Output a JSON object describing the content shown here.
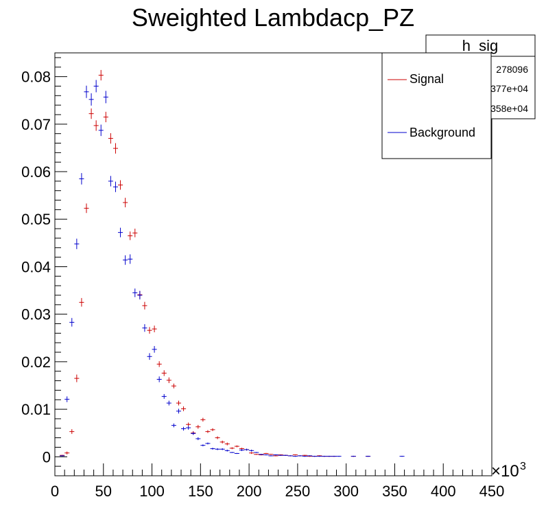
{
  "chart_data": {
    "type": "scatter",
    "title": "Sweighted Lambdacp_PZ",
    "xlabel": "",
    "ylabel": "",
    "x_multiplier_label": "×10",
    "x_multiplier_exp": "3",
    "xlim": [
      0,
      450
    ],
    "ylim": [
      -0.004,
      0.085
    ],
    "x_ticks": [
      0,
      50,
      100,
      150,
      200,
      250,
      300,
      350,
      400,
      450
    ],
    "y_ticks": [
      0,
      0.01,
      0.02,
      0.03,
      0.04,
      0.05,
      0.06,
      0.07,
      0.08
    ],
    "y_tick_labels": [
      "0",
      "0.01",
      "0.02",
      "0.03",
      "0.04",
      "0.05",
      "0.06",
      "0.07",
      "0.08"
    ],
    "x_bin_width": 5,
    "grid": false,
    "legend_position": "top-right",
    "stats_box": {
      "title": "h_sig",
      "lines": [
        "278096",
        "377e+04",
        "358e+04"
      ]
    },
    "series": [
      {
        "name": "Signal",
        "color": "#cc0000",
        "x": [
          7.5,
          12.5,
          17.5,
          22.5,
          27.5,
          32.5,
          37.5,
          42.5,
          47.5,
          52.5,
          57.5,
          62.5,
          67.5,
          72.5,
          77.5,
          82.5,
          87.5,
          92.5,
          97.5,
          102.5,
          107.5,
          112.5,
          117.5,
          122.5,
          127.5,
          132.5,
          137.5,
          142.5,
          147.5,
          152.5,
          157.5,
          162.5,
          167.5,
          172.5,
          177.5,
          182.5,
          187.5,
          192.5,
          197.5,
          202.5,
          207.5,
          212.5,
          217.5,
          222.5,
          227.5,
          232.5,
          237.5,
          242.5,
          247.5,
          252.5,
          257.5,
          262.5,
          267.5,
          272.5,
          277.5,
          282.5,
          287.5,
          307.5,
          322.5
        ],
        "y": [
          0.0003,
          0.0008,
          0.0053,
          0.0165,
          0.0325,
          0.0523,
          0.0722,
          0.0697,
          0.0803,
          0.0715,
          0.067,
          0.0649,
          0.0572,
          0.0535,
          0.0465,
          0.0471,
          0.0341,
          0.0318,
          0.0266,
          0.0269,
          0.0195,
          0.0176,
          0.0161,
          0.0149,
          0.0113,
          0.0101,
          0.0068,
          0.005,
          0.0063,
          0.0078,
          0.0053,
          0.0057,
          0.004,
          0.0031,
          0.0027,
          0.0018,
          0.0022,
          0.0017,
          0.0015,
          0.0008,
          0.0005,
          0.0004,
          0.0007,
          0.0005,
          0.0002,
          0.0004,
          0.0003,
          0.0002,
          0.0004,
          0.0002,
          0.0003,
          0.0001,
          0.0001,
          0.0002,
          0.0001,
          0.0001,
          0.0001,
          0.0001,
          0.0001
        ],
        "y_err": [
          0.0001,
          0.0003,
          0.0005,
          0.0008,
          0.0009,
          0.001,
          0.0011,
          0.0011,
          0.0011,
          0.0011,
          0.0011,
          0.0011,
          0.001,
          0.001,
          0.0009,
          0.0009,
          0.0008,
          0.0008,
          0.0007,
          0.0007,
          0.0006,
          0.0006,
          0.0006,
          0.0005,
          0.0005,
          0.0005,
          0.0004,
          0.0004,
          0.0004,
          0.0004,
          0.0003,
          0.0003,
          0.0003,
          0.0003,
          0.0003,
          0.0002,
          0.0002,
          0.0002,
          0.0002,
          0.0002,
          0.0001,
          0.0001,
          0.0001,
          0.0001,
          0.0001,
          0.0001,
          0.0001,
          0.0001,
          0.0001,
          0.0001,
          0.0001,
          0.0001,
          0.0001,
          0.0001,
          0.0001,
          0.0001,
          0.0001,
          0.0001,
          0.0001
        ]
      },
      {
        "name": "Background",
        "color": "#0000cc",
        "x": [
          7.5,
          12.5,
          17.5,
          22.5,
          27.5,
          32.5,
          37.5,
          42.5,
          47.5,
          52.5,
          57.5,
          62.5,
          67.5,
          72.5,
          77.5,
          82.5,
          87.5,
          92.5,
          97.5,
          102.5,
          107.5,
          112.5,
          117.5,
          122.5,
          127.5,
          132.5,
          137.5,
          142.5,
          147.5,
          152.5,
          157.5,
          162.5,
          167.5,
          172.5,
          177.5,
          182.5,
          187.5,
          192.5,
          197.5,
          202.5,
          207.5,
          212.5,
          217.5,
          222.5,
          227.5,
          232.5,
          237.5,
          242.5,
          247.5,
          252.5,
          257.5,
          262.5,
          267.5,
          272.5,
          277.5,
          282.5,
          287.5,
          292.5,
          307.5,
          322.5,
          357.5
        ],
        "y": [
          0.0002,
          0.0121,
          0.0283,
          0.0448,
          0.0585,
          0.0768,
          0.0752,
          0.078,
          0.0687,
          0.0757,
          0.058,
          0.0568,
          0.0472,
          0.0414,
          0.0416,
          0.0345,
          0.034,
          0.0271,
          0.0211,
          0.0226,
          0.0163,
          0.0127,
          0.0113,
          0.0066,
          0.0096,
          0.0059,
          0.0061,
          0.0049,
          0.0038,
          0.0024,
          0.0028,
          0.0017,
          0.0016,
          0.0016,
          0.0013,
          0.0009,
          0.0007,
          0.0014,
          0.0015,
          0.0013,
          0.0009,
          0.0005,
          0.0004,
          0.0002,
          0.0004,
          0.0003,
          0.0003,
          0.0002,
          0.0001,
          0.0002,
          0.0001,
          0.0002,
          0.0001,
          0.0001,
          0.0001,
          0.0001,
          0.0001,
          0.0001,
          0.0001,
          0.0001,
          0.0001
        ],
        "y_err": [
          0.0001,
          0.0006,
          0.0009,
          0.0011,
          0.0012,
          0.0013,
          0.0013,
          0.0013,
          0.0012,
          0.0013,
          0.0011,
          0.0011,
          0.001,
          0.001,
          0.001,
          0.0009,
          0.0009,
          0.0008,
          0.0007,
          0.0007,
          0.0006,
          0.0005,
          0.0005,
          0.0004,
          0.0005,
          0.0004,
          0.0004,
          0.0003,
          0.0003,
          0.0002,
          0.0002,
          0.0002,
          0.0002,
          0.0002,
          0.0002,
          0.0001,
          0.0001,
          0.0002,
          0.0002,
          0.0002,
          0.0001,
          0.0001,
          0.0001,
          0.0001,
          0.0001,
          0.0001,
          0.0001,
          0.0001,
          0.0001,
          0.0001,
          0.0001,
          0.0001,
          0.0001,
          0.0001,
          0.0001,
          0.0001,
          0.0001,
          0.0001,
          0.0001,
          0.0001,
          0.0001
        ]
      }
    ]
  }
}
